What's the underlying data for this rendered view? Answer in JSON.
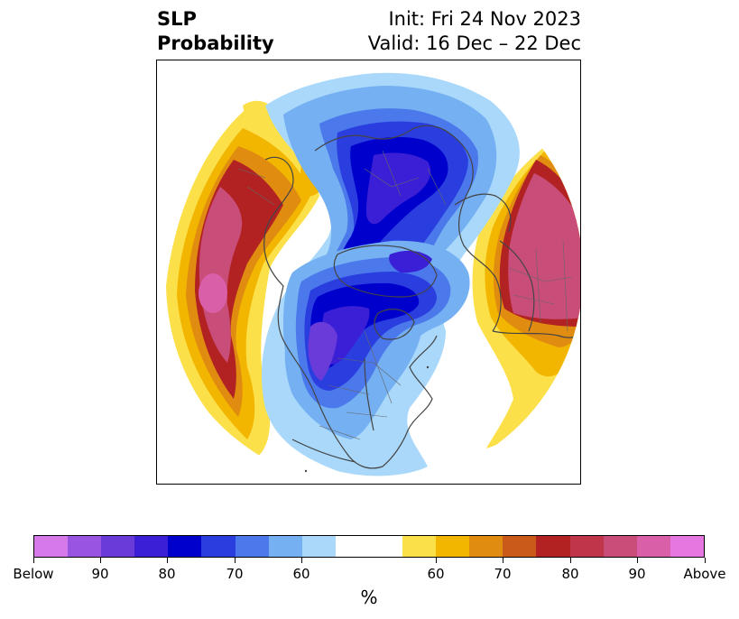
{
  "title": {
    "left_line1": "SLP",
    "left_line2": "Probability",
    "right_line1": "Init: Fri 24 Nov 2023",
    "right_line2": "Valid: 16 Dec – 22 Dec"
  },
  "colorbar": {
    "label": "%",
    "colors": [
      "#d57ae8",
      "#9a55e0",
      "#6a3bd8",
      "#3b1fd6",
      "#0000cc",
      "#2a3ee0",
      "#4b78ea",
      "#74b0f2",
      "#a9d8fa",
      "#ffffff",
      "#ffffff",
      "#fbe04a",
      "#f2b600",
      "#e08c10",
      "#c95a1a",
      "#b22222",
      "#c0354a",
      "#c84d78",
      "#d85fa8",
      "#e677e0"
    ],
    "ticks": [
      "Below",
      "90",
      "80",
      "70",
      "60",
      "60",
      "70",
      "80",
      "90",
      "Above"
    ]
  },
  "map": {
    "projection": "north-polar-stereographic",
    "fill_colors": {
      "above_60": "#fbe04a",
      "above_65": "#f2b600",
      "above_70": "#e08c10",
      "above_75": "#c95a1a",
      "above_80": "#b22222",
      "above_85": "#c0354a",
      "above_90": "#c84d78",
      "above_95": "#d85fa8",
      "below_60": "#a9d8fa",
      "below_65": "#74b0f2",
      "below_70": "#4b78ea",
      "below_75": "#2a3ee0",
      "below_80": "#0000cc",
      "below_85": "#3b1fd6",
      "below_90": "#6a3bd8"
    }
  }
}
